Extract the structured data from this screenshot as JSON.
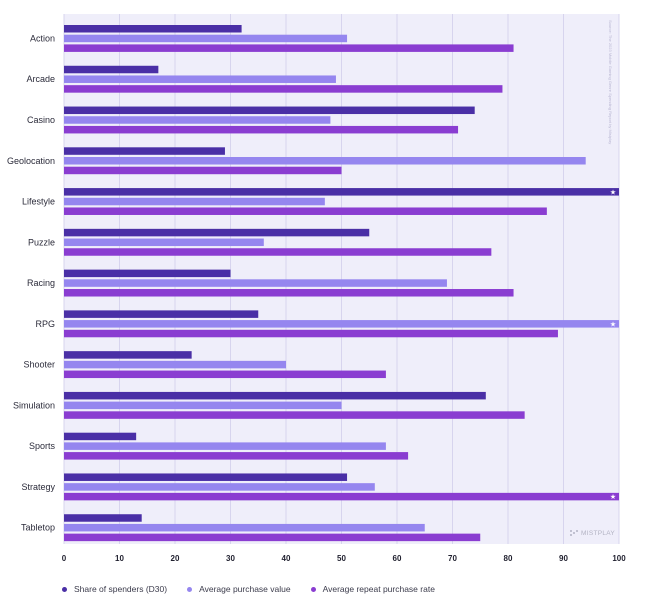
{
  "chart_data": {
    "type": "bar",
    "orientation": "horizontal",
    "categories": [
      "Action",
      "Arcade",
      "Casino",
      "Geolocation",
      "Lifestyle",
      "Puzzle",
      "Racing",
      "RPG",
      "Shooter",
      "Simulation",
      "Sports",
      "Strategy",
      "Tabletop"
    ],
    "series": [
      {
        "name": "Share of spenders (D30)",
        "color": "#4a2fa6",
        "values": [
          32,
          17,
          74,
          29,
          100,
          55,
          30,
          35,
          23,
          76,
          13,
          51,
          14
        ]
      },
      {
        "name": "Average purchase value",
        "color": "#9586ef",
        "values": [
          51,
          49,
          48,
          94,
          47,
          36,
          69,
          100,
          40,
          50,
          58,
          56,
          65
        ]
      },
      {
        "name": "Average repeat purchase rate",
        "color": "#8a3dd1",
        "values": [
          81,
          79,
          71,
          50,
          87,
          77,
          81,
          89,
          58,
          83,
          62,
          100,
          75
        ]
      }
    ],
    "max_marker": "★",
    "xlim": [
      0,
      100
    ],
    "x_ticks": [
      0,
      10,
      20,
      30,
      40,
      50,
      60,
      70,
      80,
      90,
      100
    ],
    "grid": true,
    "legend_position": "bottom-left",
    "plot_background": "#efeefa"
  },
  "source_note": "Source: The 2023 Mobile Gaming Genre Spending Report by Mistplay",
  "brand": "MISTPLAY"
}
